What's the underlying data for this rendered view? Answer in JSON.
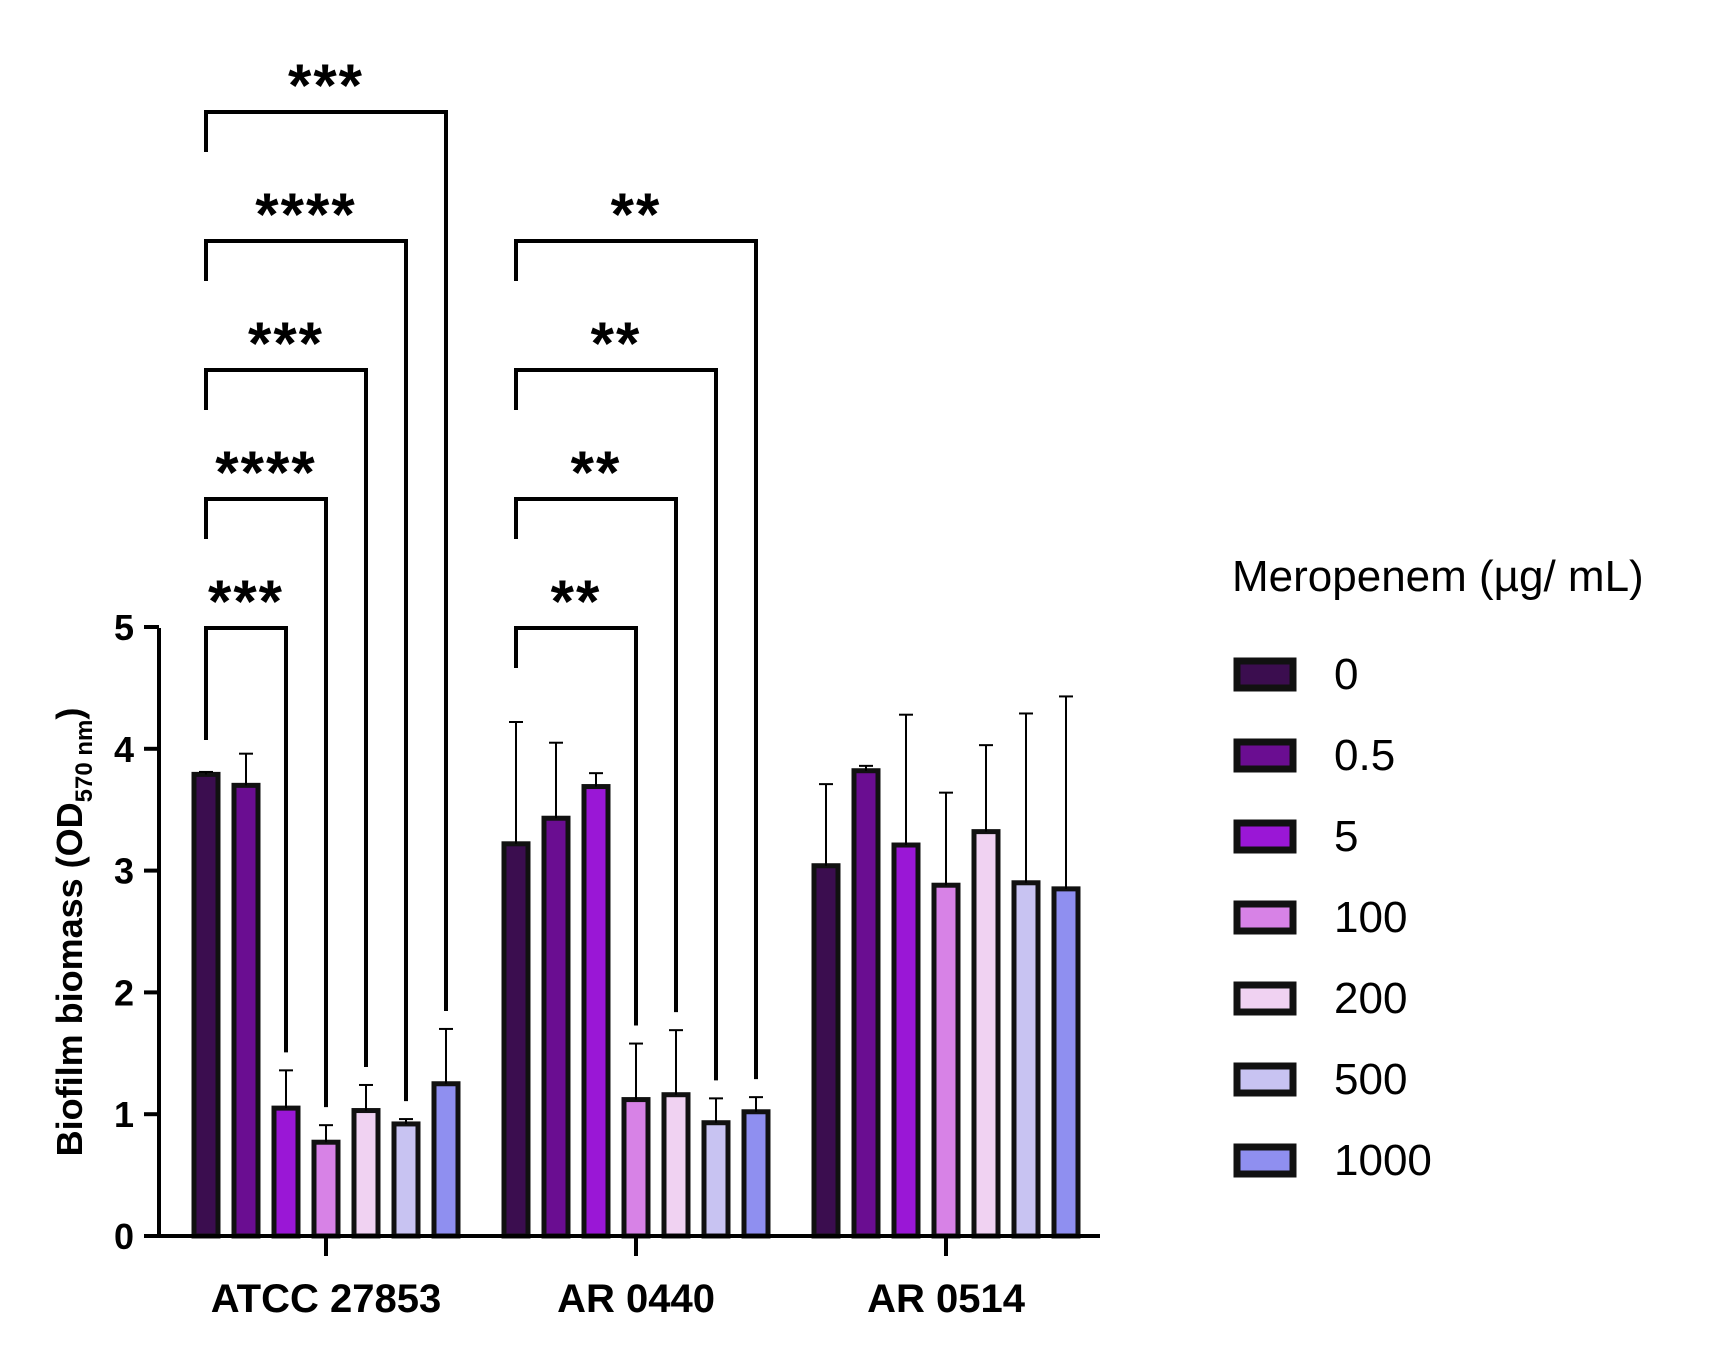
{
  "chart_data": {
    "type": "bar",
    "categories": [
      "ATCC 27853",
      "AR 0440",
      "AR 0514"
    ],
    "ylabel": "Biofilm biomass (OD",
    "ylabel_subscript": "570 nm",
    "ylabel_close": ")",
    "ylim": [
      0,
      5
    ],
    "yticks": [
      "0",
      "1",
      "2",
      "3",
      "4",
      "5"
    ],
    "legend_title": "Meropenem (µg/ mL)",
    "legend_position": "right",
    "grid": false,
    "series": [
      {
        "name": "0",
        "color": "#3b0d4f",
        "values": [
          3.79,
          3.22,
          3.04
        ],
        "errors": [
          0.02,
          1.0,
          0.67
        ]
      },
      {
        "name": "0.5",
        "color": "#6a0d91",
        "values": [
          3.7,
          3.43,
          3.82
        ],
        "errors": [
          0.26,
          0.62,
          0.04
        ]
      },
      {
        "name": "5",
        "color": "#9a17d6",
        "values": [
          1.05,
          3.69,
          3.21
        ],
        "errors": [
          0.31,
          0.11,
          1.07
        ]
      },
      {
        "name": "100",
        "color": "#d782e6",
        "values": [
          0.77,
          1.12,
          2.88
        ],
        "errors": [
          0.14,
          0.46,
          0.76
        ]
      },
      {
        "name": "200",
        "color": "#f0d2f2",
        "values": [
          1.03,
          1.16,
          3.32
        ],
        "errors": [
          0.21,
          0.53,
          0.71
        ]
      },
      {
        "name": "500",
        "color": "#c8c3f2",
        "values": [
          0.92,
          0.93,
          2.9
        ],
        "errors": [
          0.04,
          0.2,
          1.39
        ]
      },
      {
        "name": "1000",
        "color": "#8f8ff0",
        "values": [
          1.25,
          1.02,
          2.85
        ],
        "errors": [
          0.45,
          0.12,
          1.58
        ]
      }
    ],
    "significance": [
      {
        "category": 0,
        "from": 0,
        "to": 2,
        "label": "***"
      },
      {
        "category": 0,
        "from": 0,
        "to": 3,
        "label": "****"
      },
      {
        "category": 0,
        "from": 0,
        "to": 4,
        "label": "***"
      },
      {
        "category": 0,
        "from": 0,
        "to": 5,
        "label": "****"
      },
      {
        "category": 0,
        "from": 0,
        "to": 6,
        "label": "***"
      },
      {
        "category": 1,
        "from": 0,
        "to": 3,
        "label": "**"
      },
      {
        "category": 1,
        "from": 0,
        "to": 4,
        "label": "**"
      },
      {
        "category": 1,
        "from": 0,
        "to": 5,
        "label": "**"
      },
      {
        "category": 1,
        "from": 0,
        "to": 6,
        "label": "**"
      }
    ]
  }
}
